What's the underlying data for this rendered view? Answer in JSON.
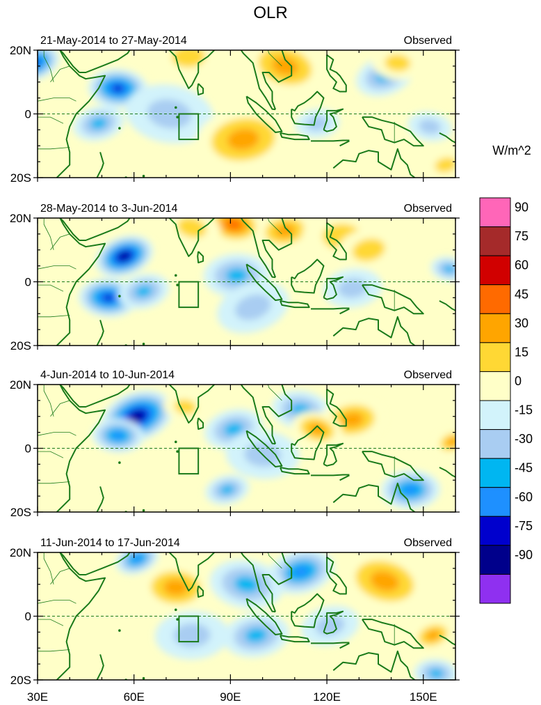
{
  "chart_data": {
    "type": "heatmap",
    "title": "OLR",
    "colorbar": {
      "unit_label": "W/m^2",
      "tick_labels": [
        "90",
        "75",
        "60",
        "45",
        "30",
        "15",
        "0",
        "-15",
        "-30",
        "-45",
        "-60",
        "-75",
        "-90"
      ],
      "levels": [
        90,
        75,
        60,
        45,
        30,
        15,
        0,
        -15,
        -30,
        -45,
        -60,
        -75,
        -90
      ],
      "colors": [
        "#ff66b8",
        "#a52a2a",
        "#d10000",
        "#ff6a00",
        "#ffa500",
        "#ffd834",
        "#ffffc8",
        "#d2f3fb",
        "#a9cdf2",
        "#00b6f1",
        "#1e90ff",
        "#0000cd",
        "#00008b",
        "#8f30f0"
      ]
    },
    "x_ticks": [
      "30E",
      "60E",
      "90E",
      "120E",
      "150E"
    ],
    "x_values": [
      30,
      60,
      90,
      120,
      150
    ],
    "y_ticks": [
      "20N",
      "0",
      "20S"
    ],
    "y_values": [
      20,
      0,
      -20
    ],
    "lon_range": [
      30,
      160
    ],
    "lat_range": [
      -20,
      20
    ],
    "panels": [
      {
        "date_range": "21-May-2014 to 27-May-2014",
        "label": "Observed",
        "anomalies": [
          {
            "lon": 29,
            "lat": 16,
            "value": -65,
            "r": 7
          },
          {
            "lon": 55,
            "lat": 8,
            "value": -68,
            "r": 8
          },
          {
            "lon": 49,
            "lat": -3,
            "value": -38,
            "r": 7
          },
          {
            "lon": 71,
            "lat": 0,
            "value": -18,
            "r": 12
          },
          {
            "lon": 94,
            "lat": -8,
            "value": 38,
            "r": 13
          },
          {
            "lon": 107,
            "lat": 15,
            "value": 38,
            "r": 11
          },
          {
            "lon": 77,
            "lat": 18,
            "value": 22,
            "r": 9
          },
          {
            "lon": 138,
            "lat": 12,
            "value": -40,
            "r": 8
          },
          {
            "lon": 142,
            "lat": 16,
            "value": 22,
            "r": 7
          },
          {
            "lon": 157,
            "lat": -16,
            "value": 28,
            "r": 6
          },
          {
            "lon": 152,
            "lat": -4,
            "value": -22,
            "r": 6
          },
          {
            "lon": 117,
            "lat": -3,
            "value": -16,
            "r": 6
          }
        ]
      },
      {
        "date_range": "28-May-2014 to 3-Jun-2014",
        "label": "Observed",
        "anomalies": [
          {
            "lon": 57,
            "lat": 8,
            "value": -78,
            "r": 8
          },
          {
            "lon": 52,
            "lat": -5,
            "value": -74,
            "r": 8
          },
          {
            "lon": 63,
            "lat": -3,
            "value": -38,
            "r": 7
          },
          {
            "lon": 91,
            "lat": 18,
            "value": 48,
            "r": 8
          },
          {
            "lon": 107,
            "lat": 16,
            "value": 44,
            "r": 8
          },
          {
            "lon": 78,
            "lat": 17,
            "value": 22,
            "r": 8
          },
          {
            "lon": 92,
            "lat": 2,
            "value": -45,
            "r": 9
          },
          {
            "lon": 97,
            "lat": -8,
            "value": -22,
            "r": 10
          },
          {
            "lon": 125,
            "lat": 14,
            "value": 28,
            "r": 11
          },
          {
            "lon": 133,
            "lat": 10,
            "value": 22,
            "r": 9
          },
          {
            "lon": 158,
            "lat": 4,
            "value": -40,
            "r": 5
          },
          {
            "lon": 128,
            "lat": -2,
            "value": -18,
            "r": 8
          }
        ]
      },
      {
        "date_range": "4-Jun-2014 to 10-Jun-2014",
        "label": "Observed",
        "anomalies": [
          {
            "lon": 61,
            "lat": 10,
            "value": -88,
            "r": 10
          },
          {
            "lon": 55,
            "lat": 4,
            "value": -52,
            "r": 7
          },
          {
            "lon": 91,
            "lat": 6,
            "value": -45,
            "r": 8
          },
          {
            "lon": 112,
            "lat": 12,
            "value": -40,
            "r": 8
          },
          {
            "lon": 128,
            "lat": 9,
            "value": 36,
            "r": 9
          },
          {
            "lon": 117,
            "lat": 6,
            "value": 32,
            "r": 7
          },
          {
            "lon": 146,
            "lat": -13,
            "value": -50,
            "r": 8
          },
          {
            "lon": 159,
            "lat": 2,
            "value": 34,
            "r": 5
          },
          {
            "lon": 100,
            "lat": -2,
            "value": -20,
            "r": 10
          },
          {
            "lon": 89,
            "lat": -13,
            "value": -32,
            "r": 6
          },
          {
            "lon": 76,
            "lat": 13,
            "value": 20,
            "r": 6
          }
        ]
      },
      {
        "date_range": "11-Jun-2014 to 17-Jun-2014",
        "label": "Observed",
        "anomalies": [
          {
            "lon": 61,
            "lat": 18,
            "value": -60,
            "r": 6
          },
          {
            "lon": 73,
            "lat": 9,
            "value": 32,
            "r": 10
          },
          {
            "lon": 112,
            "lat": 14,
            "value": -58,
            "r": 9
          },
          {
            "lon": 95,
            "lat": 10,
            "value": -38,
            "r": 10
          },
          {
            "lon": 98,
            "lat": -6,
            "value": -42,
            "r": 9
          },
          {
            "lon": 138,
            "lat": 11,
            "value": 36,
            "r": 12
          },
          {
            "lon": 78,
            "lat": -6,
            "value": -22,
            "r": 10
          },
          {
            "lon": 153,
            "lat": -6,
            "value": 32,
            "r": 6
          },
          {
            "lon": 154,
            "lat": -18,
            "value": -40,
            "r": 6
          },
          {
            "lon": 121,
            "lat": -3,
            "value": -20,
            "r": 8
          }
        ]
      }
    ]
  }
}
